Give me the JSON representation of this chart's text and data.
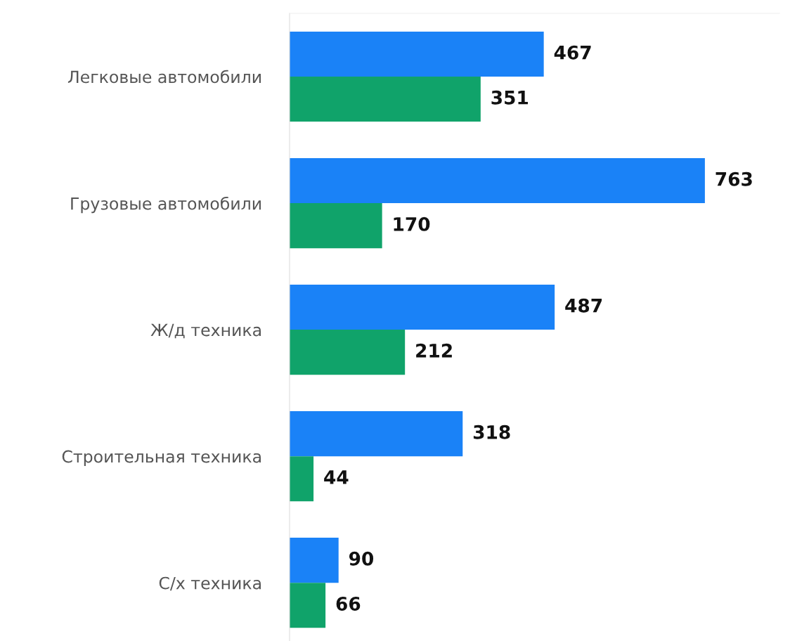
{
  "chart_data": {
    "type": "bar",
    "orientation": "horizontal",
    "categories": [
      "Легковые автомобили",
      "Грузовые автомобили",
      "Ж/д техника",
      "Строительная техника",
      "С/х техника"
    ],
    "series": [
      {
        "color": "#1a82f7",
        "values": [
          467,
          763,
          487,
          318,
          90
        ]
      },
      {
        "color": "#10a36a",
        "values": [
          351,
          170,
          212,
          44,
          66
        ]
      }
    ],
    "xlim": [
      0,
      900
    ],
    "data_labels": true,
    "tick_labels": "y",
    "grid": false,
    "legend": false
  }
}
